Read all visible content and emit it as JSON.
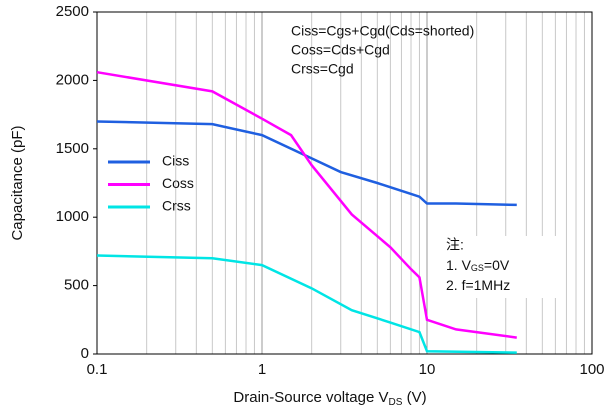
{
  "chart_data": {
    "type": "line",
    "xlabel": {
      "text": "Drain-Source voltage V",
      "sub": "DS",
      "suffix": " (V)"
    },
    "ylabel": "Capacitance (pF)",
    "xscale": "log",
    "xlim": [
      0.1,
      100
    ],
    "xticks": [
      0.1,
      1,
      10,
      100
    ],
    "ylim": [
      0,
      2500
    ],
    "yticks": [
      0,
      500,
      1000,
      1500,
      2000,
      2500
    ],
    "grid": true,
    "legend": "left",
    "annotations": [
      "Ciss=Cgs+Cgd(Cds=shorted)",
      "Coss=Cds+Cgd",
      "Crss=Cgd"
    ],
    "notes": {
      "title": "注:",
      "items": [
        {
          "text": "1. V",
          "sub": "GS",
          "suffix": "=0V"
        },
        {
          "text": "2. f=1MHz"
        }
      ]
    },
    "series": [
      {
        "name": "Ciss",
        "color": "#1f5fe0",
        "x": [
          0.1,
          0.5,
          1,
          2,
          3,
          5,
          8,
          9,
          10,
          15,
          35
        ],
        "values": [
          1700,
          1680,
          1600,
          1430,
          1330,
          1250,
          1170,
          1150,
          1100,
          1100,
          1090
        ]
      },
      {
        "name": "Coss",
        "color": "#ff00ff",
        "x": [
          0.1,
          0.5,
          1,
          1.5,
          2,
          3.5,
          6,
          8,
          9,
          10,
          15,
          35
        ],
        "values": [
          2060,
          1920,
          1720,
          1600,
          1380,
          1020,
          780,
          620,
          560,
          250,
          180,
          120
        ]
      },
      {
        "name": "Crss",
        "color": "#00e5e5",
        "x": [
          0.1,
          0.5,
          1,
          2,
          3.5,
          6,
          9,
          10,
          35
        ],
        "values": [
          720,
          700,
          650,
          480,
          320,
          230,
          160,
          20,
          10
        ]
      }
    ]
  }
}
